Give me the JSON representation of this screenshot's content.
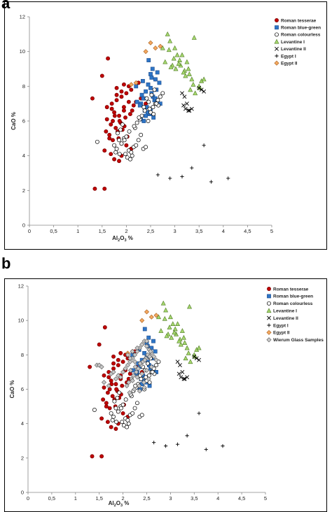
{
  "panels": [
    {
      "letter": "a"
    },
    {
      "letter": "b"
    }
  ],
  "series_styles": {
    "Roman tesserae": {
      "marker": "circle",
      "fill": "#c00000",
      "stroke": "#7a0000"
    },
    "Roman blue-green": {
      "marker": "square",
      "fill": "#2e75c7",
      "stroke": "#1f4e8c"
    },
    "Roman colourless": {
      "marker": "circle",
      "fill": "#ffffff",
      "stroke": "#000000"
    },
    "Levantine I": {
      "marker": "triangle",
      "fill": "#a6d86e",
      "stroke": "#4f7a25"
    },
    "Levantine II": {
      "marker": "x",
      "fill": "none",
      "stroke": "#000000"
    },
    "Egypt I": {
      "marker": "plus",
      "fill": "none",
      "stroke": "#000000"
    },
    "Egypt II": {
      "marker": "diamond",
      "fill": "#f4a860",
      "stroke": "#a65e1c"
    },
    "Wierum Glass Samples": {
      "marker": "diamond",
      "fill": "#c8c8c8",
      "stroke": "#555555"
    }
  },
  "chart_data": [
    {
      "type": "scatter",
      "title": "",
      "xlabel": "Al",
      "xlabel_sub": "2",
      "xlabel_mid": "O",
      "xlabel_sub2": "3",
      "xlabel_end": " %",
      "ylabel": "CaO %",
      "xlim": [
        0,
        5
      ],
      "ylim": [
        0,
        12
      ],
      "xticks": [
        "0",
        "0,5",
        "1",
        "1,5",
        "2",
        "2,5",
        "3",
        "3,5",
        "4",
        "4,5",
        "5"
      ],
      "yticks": [
        "0",
        "2",
        "4",
        "6",
        "8",
        "10",
        "12"
      ],
      "grid": false,
      "legend_position": "top-right",
      "series": [
        {
          "name": "Roman tesserae",
          "x": [
            1.3,
            1.35,
            1.5,
            1.55,
            1.62,
            1.6,
            1.7,
            1.8,
            1.9,
            2.0,
            2.1,
            2.05,
            1.75,
            1.85,
            1.95,
            2.15,
            1.72,
            1.68,
            1.78,
            1.88,
            1.98,
            2.08,
            1.82,
            1.92,
            1.65,
            1.58,
            1.72,
            1.84,
            1.9,
            2.0,
            2.2,
            2.25,
            1.95,
            1.8,
            1.7,
            1.6,
            1.65,
            1.9,
            2.1,
            1.75,
            1.85,
            1.55,
            1.68,
            2.02,
            1.96,
            1.86,
            1.76,
            2.12,
            2.3,
            2.4,
            2.6,
            1.9,
            1.8,
            1.95,
            2.05
          ],
          "y": [
            7.3,
            2.1,
            8.6,
            2.1,
            9.6,
            6.8,
            7.0,
            7.2,
            7.4,
            7.6,
            7.8,
            8.0,
            6.5,
            6.3,
            6.6,
            6.9,
            6.0,
            5.8,
            5.6,
            5.9,
            6.2,
            6.4,
            5.4,
            5.5,
            5.2,
            5.4,
            4.9,
            5.0,
            4.7,
            4.6,
            7.1,
            8.2,
            8.1,
            7.5,
            6.7,
            6.1,
            5.0,
            4.0,
            4.4,
            3.8,
            3.7,
            4.3,
            4.1,
            5.1,
            5.7,
            6.0,
            6.3,
            6.6,
            7.3,
            7.0,
            8.4,
            7.7,
            7.9,
            6.8,
            7.1
          ]
        },
        {
          "name": "Roman blue-green",
          "x": [
            2.4,
            2.5,
            2.45,
            2.55,
            2.35,
            2.6,
            2.3,
            2.42,
            2.52,
            2.38,
            2.48,
            2.28,
            2.58,
            2.62,
            2.68,
            2.32,
            2.5,
            2.22,
            2.44,
            2.56,
            2.36,
            2.7,
            2.2,
            2.46,
            2.54,
            2.64,
            2.4,
            2.3,
            2.5,
            2.6,
            2.52,
            2.34
          ],
          "y": [
            7.7,
            7.9,
            8.1,
            7.4,
            7.3,
            8.4,
            7.0,
            6.8,
            7.6,
            6.6,
            6.4,
            6.9,
            7.2,
            7.8,
            8.2,
            7.5,
            8.7,
            7.1,
            6.5,
            6.2,
            6.0,
            7.0,
            8.0,
            9.5,
            9.0,
            8.8,
            6.3,
            6.1,
            6.7,
            7.3,
            8.5,
            8.3
          ]
        },
        {
          "name": "Roman colourless",
          "x": [
            1.4,
            1.75,
            1.8,
            1.85,
            1.9,
            1.95,
            2.0,
            2.05,
            2.1,
            2.15,
            2.2,
            2.25,
            2.3,
            2.35,
            2.4,
            2.45,
            2.5,
            2.55,
            2.6,
            2.65,
            2.7,
            2.75,
            1.82,
            1.88,
            1.92,
            1.98,
            2.02,
            2.08,
            2.12,
            2.18,
            2.22,
            2.28,
            2.32,
            2.38,
            1.78,
            1.86,
            1.96,
            2.06,
            2.16,
            2.26,
            2.36,
            2.46,
            2.56,
            2.66,
            2.42,
            2.48,
            2.52,
            2.58,
            2.62
          ],
          "y": [
            4.8,
            4.6,
            4.4,
            4.9,
            4.7,
            5.0,
            5.1,
            4.3,
            4.2,
            4.5,
            4.6,
            4.9,
            5.2,
            4.4,
            4.5,
            6.0,
            6.5,
            6.8,
            7.0,
            7.2,
            7.4,
            7.6,
            5.3,
            5.5,
            5.8,
            4.1,
            3.9,
            3.8,
            4.0,
            5.6,
            5.9,
            6.1,
            6.3,
            6.6,
            4.2,
            4.1,
            4.9,
            5.4,
            5.7,
            6.2,
            6.8,
            7.1,
            6.4,
            6.9,
            7.3,
            6.7,
            7.5,
            7.8,
            7.0
          ]
        },
        {
          "name": "Levantine I",
          "x": [
            2.85,
            2.75,
            2.9,
            3.0,
            3.05,
            3.1,
            2.95,
            3.15,
            3.2,
            3.25,
            3.3,
            3.35,
            3.4,
            3.5,
            3.55,
            3.6,
            2.8,
            2.92,
            3.02,
            3.12,
            3.22,
            3.32,
            3.42,
            3.52,
            3.28,
            3.38,
            2.88,
            2.98,
            3.08,
            3.18
          ],
          "y": [
            11.0,
            10.2,
            10.6,
            10.2,
            9.8,
            9.5,
            9.2,
            9.8,
            8.9,
            9.4,
            8.7,
            8.4,
            10.8,
            8.0,
            8.3,
            8.4,
            9.4,
            9.1,
            9.0,
            9.2,
            8.6,
            7.8,
            7.6,
            7.9,
            9.0,
            8.1,
            10.1,
            9.6,
            9.3,
            8.8
          ]
        },
        {
          "name": "Levantine II",
          "x": [
            3.15,
            3.2,
            3.25,
            3.3,
            3.35,
            3.22,
            3.18,
            3.28,
            3.6,
            3.55,
            3.5
          ],
          "y": [
            7.6,
            7.4,
            7.0,
            6.6,
            6.7,
            6.7,
            6.9,
            6.6,
            7.7,
            7.8,
            7.9
          ]
        },
        {
          "name": "Egypt I",
          "x": [
            2.65,
            2.9,
            3.15,
            3.35,
            3.6,
            3.75,
            4.1
          ],
          "y": [
            2.9,
            2.7,
            2.8,
            3.3,
            4.6,
            2.5,
            2.7
          ]
        },
        {
          "name": "Egypt II",
          "x": [
            2.5,
            2.4,
            2.6,
            2.7,
            2.1,
            2.2
          ],
          "y": [
            10.5,
            10.0,
            10.2,
            10.3,
            8.1,
            8.2
          ]
        }
      ]
    },
    {
      "type": "scatter",
      "title": "",
      "xlabel": "Al",
      "xlabel_sub": "2",
      "xlabel_mid": "O",
      "xlabel_sub2": "3",
      "xlabel_end": " %",
      "ylabel": "CaO %",
      "xlim": [
        0,
        5
      ],
      "ylim": [
        0,
        12
      ],
      "xticks": [
        "0",
        "0,5",
        "1",
        "1,5",
        "2",
        "2,5",
        "3",
        "3,5",
        "4",
        "4,5",
        "5"
      ],
      "yticks": [
        "0",
        "2",
        "4",
        "6",
        "8",
        "10",
        "12"
      ],
      "grid": false,
      "legend_position": "top-right",
      "series": [
        {
          "name": "Roman tesserae",
          "x": [
            1.3,
            1.35,
            1.5,
            1.55,
            1.62,
            1.6,
            1.7,
            1.8,
            1.9,
            2.0,
            2.1,
            2.05,
            1.75,
            1.85,
            1.95,
            2.15,
            1.72,
            1.68,
            1.78,
            1.88,
            1.98,
            2.08,
            1.82,
            1.92,
            1.65,
            1.58,
            1.72,
            1.84,
            1.9,
            2.0,
            2.2,
            2.25,
            1.95,
            1.8,
            1.7,
            1.6,
            1.65,
            1.9,
            2.1,
            1.75,
            1.85,
            1.55,
            1.68,
            2.02,
            1.96,
            1.86,
            1.76,
            2.12,
            2.3,
            2.4,
            2.6,
            1.9,
            1.8,
            1.95,
            2.05
          ],
          "y": [
            7.3,
            2.1,
            8.6,
            2.1,
            9.6,
            6.8,
            7.0,
            7.2,
            7.4,
            7.6,
            7.8,
            8.0,
            6.5,
            6.3,
            6.6,
            6.9,
            6.0,
            5.8,
            5.6,
            5.9,
            6.2,
            6.4,
            5.4,
            5.5,
            5.2,
            5.4,
            4.9,
            5.0,
            4.7,
            4.6,
            7.1,
            8.2,
            8.1,
            7.5,
            6.7,
            6.1,
            5.0,
            4.0,
            4.4,
            3.8,
            3.7,
            4.3,
            4.1,
            5.1,
            5.7,
            6.0,
            6.3,
            6.6,
            7.3,
            7.0,
            8.4,
            7.7,
            7.9,
            6.8,
            7.1
          ]
        },
        {
          "name": "Roman blue-green",
          "x": [
            2.4,
            2.5,
            2.45,
            2.55,
            2.35,
            2.6,
            2.3,
            2.42,
            2.52,
            2.38,
            2.48,
            2.28,
            2.58,
            2.62,
            2.68,
            2.32,
            2.5,
            2.22,
            2.44,
            2.56,
            2.36,
            2.7,
            2.2,
            2.46,
            2.54,
            2.64,
            2.4,
            2.3,
            2.5,
            2.6,
            2.52,
            2.34
          ],
          "y": [
            7.7,
            7.9,
            8.1,
            7.4,
            7.3,
            8.4,
            7.0,
            6.8,
            7.6,
            6.6,
            6.4,
            6.9,
            7.2,
            7.8,
            8.2,
            7.5,
            8.7,
            7.1,
            6.5,
            6.2,
            6.0,
            7.0,
            8.0,
            9.5,
            9.0,
            8.8,
            6.3,
            6.1,
            6.7,
            7.3,
            8.5,
            8.3
          ]
        },
        {
          "name": "Roman colourless",
          "x": [
            1.4,
            1.75,
            1.8,
            1.85,
            1.9,
            1.95,
            2.0,
            2.05,
            2.1,
            2.15,
            2.2,
            2.25,
            2.3,
            2.35,
            2.4,
            2.45,
            2.5,
            2.55,
            2.6,
            2.65,
            2.7,
            2.75,
            1.82,
            1.88,
            1.92,
            1.98,
            2.02,
            2.08,
            2.12,
            2.18,
            2.22,
            2.28,
            2.32,
            2.38,
            1.78,
            1.86,
            1.96,
            2.06,
            2.16,
            2.26,
            2.36,
            2.46,
            2.56,
            2.66,
            2.42,
            2.48,
            2.52,
            2.58,
            2.62
          ],
          "y": [
            4.8,
            4.6,
            4.4,
            4.9,
            4.7,
            5.0,
            5.1,
            4.3,
            4.2,
            4.5,
            4.6,
            4.9,
            5.2,
            4.4,
            4.5,
            6.0,
            6.5,
            6.8,
            7.0,
            7.2,
            7.4,
            7.6,
            5.3,
            5.5,
            5.8,
            4.1,
            3.9,
            3.8,
            4.0,
            5.6,
            5.9,
            6.1,
            6.3,
            6.6,
            4.2,
            4.1,
            4.9,
            5.4,
            5.7,
            6.2,
            6.8,
            7.1,
            6.4,
            6.9,
            7.3,
            6.7,
            7.5,
            7.8,
            7.0
          ]
        },
        {
          "name": "Levantine I",
          "x": [
            2.85,
            2.75,
            2.9,
            3.0,
            3.05,
            3.1,
            2.95,
            3.15,
            3.2,
            3.25,
            3.3,
            3.35,
            3.4,
            3.5,
            3.55,
            3.6,
            2.8,
            2.92,
            3.02,
            3.12,
            3.22,
            3.32,
            3.42,
            3.52,
            3.28,
            3.38,
            2.88,
            2.98,
            3.08,
            3.18
          ],
          "y": [
            11.0,
            10.2,
            10.6,
            10.2,
            9.8,
            9.5,
            9.2,
            9.8,
            8.9,
            9.4,
            8.7,
            8.4,
            10.8,
            8.0,
            8.3,
            8.4,
            9.4,
            9.1,
            9.0,
            9.2,
            8.6,
            7.8,
            7.6,
            7.9,
            9.0,
            8.1,
            10.1,
            9.6,
            9.3,
            8.8
          ]
        },
        {
          "name": "Levantine II",
          "x": [
            3.15,
            3.2,
            3.25,
            3.3,
            3.35,
            3.22,
            3.18,
            3.28,
            3.6,
            3.55,
            3.5
          ],
          "y": [
            7.6,
            7.4,
            7.0,
            6.6,
            6.7,
            6.7,
            6.9,
            6.6,
            7.7,
            7.8,
            7.9
          ]
        },
        {
          "name": "Egypt I",
          "x": [
            2.65,
            2.9,
            3.15,
            3.35,
            3.6,
            3.75,
            4.1
          ],
          "y": [
            2.9,
            2.7,
            2.8,
            3.3,
            4.6,
            2.5,
            2.7
          ]
        },
        {
          "name": "Egypt II",
          "x": [
            2.5,
            2.4,
            2.6,
            2.7,
            2.1,
            2.2
          ],
          "y": [
            10.5,
            10.0,
            10.2,
            10.3,
            8.1,
            8.2
          ]
        },
        {
          "name": "Wierum Glass Samples",
          "x": [
            1.45,
            1.5,
            1.55,
            1.6,
            1.7,
            1.75,
            1.8,
            1.85,
            1.9,
            1.95,
            2.0,
            2.05,
            2.1,
            2.15,
            2.2,
            2.25,
            2.3,
            2.35,
            2.4,
            2.45,
            2.5,
            2.55,
            2.6,
            2.65,
            2.7,
            2.08,
            2.12,
            2.18,
            2.22,
            2.28,
            2.32,
            2.38,
            2.42,
            2.48,
            2.52,
            2.58,
            2.14,
            2.24,
            2.34,
            2.44,
            2.54,
            2.16,
            2.26,
            2.36,
            2.46,
            2.56,
            2.2,
            2.3,
            2.4,
            2.5,
            2.6,
            2.1,
            2.2,
            2.3,
            2.4,
            2.5,
            2.35,
            2.45,
            2.25,
            2.15
          ],
          "y": [
            7.4,
            7.4,
            7.3,
            6.4,
            6.2,
            6.9,
            7.0,
            6.6,
            6.8,
            6.7,
            7.0,
            7.2,
            7.4,
            7.6,
            7.8,
            8.0,
            8.2,
            8.4,
            8.6,
            8.8,
            8.5,
            8.3,
            8.1,
            7.9,
            7.7,
            6.2,
            6.4,
            6.6,
            6.8,
            7.0,
            7.2,
            7.4,
            7.6,
            7.8,
            8.0,
            8.2,
            5.8,
            6.0,
            6.2,
            6.4,
            6.6,
            7.1,
            7.3,
            7.5,
            7.7,
            7.9,
            6.5,
            6.7,
            6.9,
            7.1,
            7.3,
            8.0,
            8.2,
            8.4,
            8.6,
            8.8,
            5.9,
            6.1,
            7.6,
            7.8
          ]
        }
      ]
    }
  ]
}
